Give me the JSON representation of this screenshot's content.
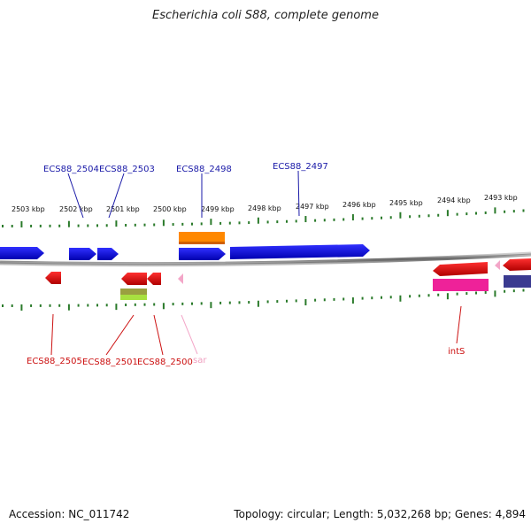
{
  "title": "Escherichia coli S88, complete genome",
  "footer": {
    "accession": "Accession: NC_011742",
    "summary": "Topology: circular; Length: 5,032,268 bp; Genes: 4,894"
  },
  "ticks": [
    "2503 kbp",
    "2502 kbp",
    "2501 kbp",
    "2500 kbp",
    "2499 kbp",
    "2498 kbp",
    "2497 kbp",
    "2496 kbp",
    "2495 kbp",
    "2494 kbp",
    "2493 kbp"
  ],
  "labels_top": [
    "ECS88_2504",
    "ECS88_2503",
    "ECS88_2498",
    "ECS88_2497"
  ],
  "labels_bottom": [
    "ECS88_2505",
    "ECS88_2501",
    "ECS88_2500",
    "sar",
    "intS"
  ],
  "colors": {
    "forward": "#1010dd",
    "reverse": "#ee1111",
    "orange": "#ff8800",
    "magenta": "#ee2299",
    "pink": "#f3a6c8",
    "navy": "#3a3a90",
    "olive": "#9aa040",
    "lime": "#a8e040",
    "tick": "#2a7a2a",
    "backbone": "#888888"
  }
}
